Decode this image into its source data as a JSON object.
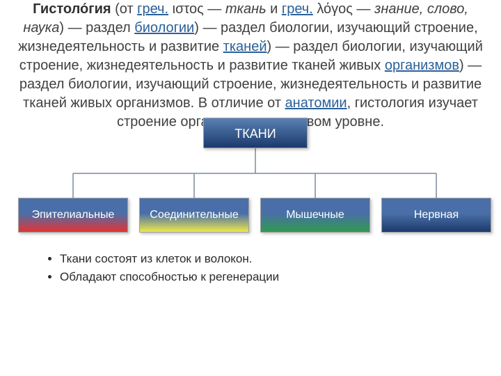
{
  "intro": {
    "t1": "Гистоло́гия",
    "t2": " (от ",
    "link_greek1": "греч.",
    "t3": " ιστος — ",
    "it_tkan": "ткань",
    "t4": " и ",
    "link_greek2": "греч.",
    "t5": " λόγος — ",
    "it_znanie": "знание, слово, наука",
    "t6": ") — раздел ",
    "link_bio": "биологии",
    "t7": ") — раздел биологии, изучающий строение, жизнедеятельность и развитие ",
    "link_tkani": "тканей",
    "t8": ") — раздел биологии, изучающий строение, жизнедеятельность и развитие тканей живых ",
    "link_org": "организмов",
    "t9": ") — раздел биологии, изучающий строение, жизнедеятельность и развитие тканей живых организмов. В отличие от ",
    "link_anat": "анатомии",
    "t10": ", гистология изучает строение организма на тканевом уровне."
  },
  "chart": {
    "root": {
      "label": "ТКАНИ",
      "fill_top": "#5a80b4",
      "fill_bottom": "#1b3a6b",
      "text_color": "#ffffff"
    },
    "children": [
      {
        "label": "Эпителиальные",
        "top": "#4a6fa8",
        "bottom": "#e63232"
      },
      {
        "label": "Соединительные",
        "top": "#4a6fa8",
        "bottom": "#f0e84a"
      },
      {
        "label": "Мышечные",
        "top": "#4a6fa8",
        "bottom": "#2e9a4e"
      },
      {
        "label": "Нервная",
        "top": "#4a6fa8",
        "bottom": "#1b3a6b"
      }
    ],
    "line_color": "#7a8aa0",
    "cursor_fill": "#ffffff",
    "cursor_stroke": "#000000"
  },
  "bullets": [
    "Ткани состоят из клеток и волокон.",
    "Обладают способностью к регенерации"
  ]
}
